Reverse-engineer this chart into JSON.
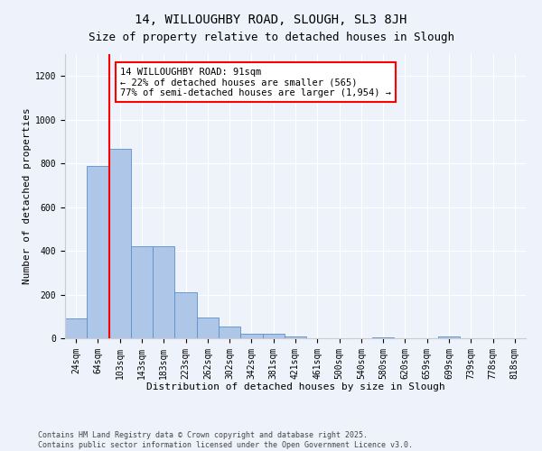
{
  "title1": "14, WILLOUGHBY ROAD, SLOUGH, SL3 8JH",
  "title2": "Size of property relative to detached houses in Slough",
  "xlabel": "Distribution of detached houses by size in Slough",
  "ylabel": "Number of detached properties",
  "categories": [
    "24sqm",
    "64sqm",
    "103sqm",
    "143sqm",
    "183sqm",
    "223sqm",
    "262sqm",
    "302sqm",
    "342sqm",
    "381sqm",
    "421sqm",
    "461sqm",
    "500sqm",
    "540sqm",
    "580sqm",
    "620sqm",
    "659sqm",
    "699sqm",
    "739sqm",
    "778sqm",
    "818sqm"
  ],
  "values": [
    90,
    790,
    865,
    420,
    420,
    210,
    95,
    55,
    20,
    20,
    10,
    0,
    0,
    0,
    5,
    0,
    0,
    10,
    0,
    0,
    0
  ],
  "bar_color": "#aec6e8",
  "bar_edge_color": "#5b8fc9",
  "vline_color": "red",
  "vline_x_index": 1.5,
  "annotation_text": "14 WILLOUGHBY ROAD: 91sqm\n← 22% of detached houses are smaller (565)\n77% of semi-detached houses are larger (1,954) →",
  "annotation_box_color": "white",
  "annotation_box_edge_color": "red",
  "ylim": [
    0,
    1300
  ],
  "yticks": [
    0,
    200,
    400,
    600,
    800,
    1000,
    1200
  ],
  "background_color": "#eef2fb",
  "grid_color": "white",
  "footnote": "Contains HM Land Registry data © Crown copyright and database right 2025.\nContains public sector information licensed under the Open Government Licence v3.0.",
  "title1_fontsize": 10,
  "title2_fontsize": 9,
  "xlabel_fontsize": 8,
  "ylabel_fontsize": 8,
  "tick_fontsize": 7,
  "annotation_fontsize": 7.5,
  "footnote_fontsize": 6
}
